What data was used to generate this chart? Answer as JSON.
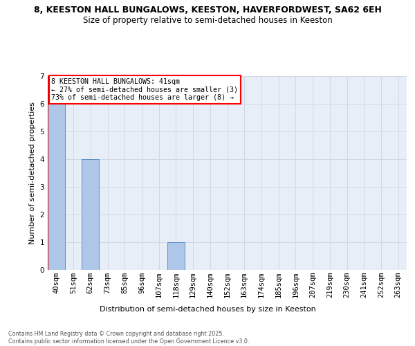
{
  "title_line1": "8, KEESTON HALL BUNGALOWS, KEESTON, HAVERFORDWEST, SA62 6EH",
  "title_line2": "Size of property relative to semi-detached houses in Keeston",
  "xlabel": "Distribution of semi-detached houses by size in Keeston",
  "ylabel": "Number of semi-detached properties",
  "categories": [
    "40sqm",
    "51sqm",
    "62sqm",
    "73sqm",
    "85sqm",
    "96sqm",
    "107sqm",
    "118sqm",
    "129sqm",
    "140sqm",
    "152sqm",
    "163sqm",
    "174sqm",
    "185sqm",
    "196sqm",
    "207sqm",
    "219sqm",
    "230sqm",
    "241sqm",
    "252sqm",
    "263sqm"
  ],
  "values": [
    6,
    0,
    4,
    0,
    0,
    0,
    0,
    1,
    0,
    0,
    0,
    0,
    0,
    0,
    0,
    0,
    0,
    0,
    0,
    0,
    0
  ],
  "bar_color": "#aec6e8",
  "bar_edge_color": "#5b8fc9",
  "annotation_text": "8 KEESTON HALL BUNGALOWS: 41sqm\n← 27% of semi-detached houses are smaller (3)\n73% of semi-detached houses are larger (8) →",
  "ylim": [
    0,
    7
  ],
  "yticks": [
    0,
    1,
    2,
    3,
    4,
    5,
    6,
    7
  ],
  "grid_color": "#d0d8e8",
  "bg_color": "#e8eef8",
  "footer": "Contains HM Land Registry data © Crown copyright and database right 2025.\nContains public sector information licensed under the Open Government Licence v3.0.",
  "subject_vline_color": "#cc0000",
  "title_fontsize": 9,
  "subtitle_fontsize": 8.5,
  "axis_label_fontsize": 8,
  "tick_fontsize": 7.5
}
